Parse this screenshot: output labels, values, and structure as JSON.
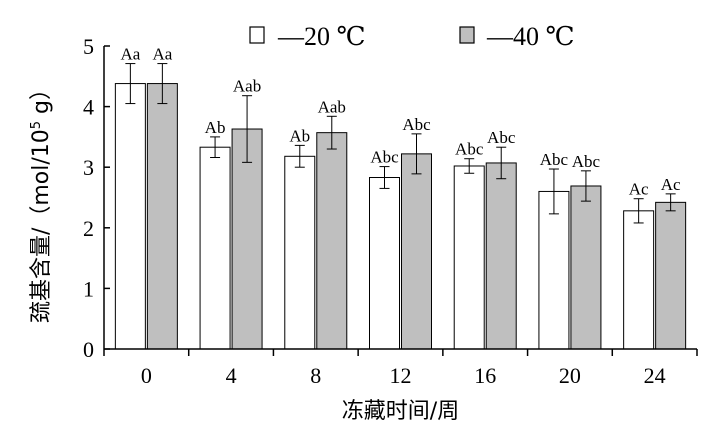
{
  "chart_data": {
    "type": "bar",
    "title": "",
    "xlabel": "冻藏时间/周",
    "ylabel": "巯基含量/（mol/10⁵ g）",
    "ylabel_parts": {
      "main": "巯基含量/（mol/10",
      "sup": "5",
      "tail": " g）"
    },
    "categories": [
      "0",
      "4",
      "8",
      "12",
      "16",
      "20",
      "24"
    ],
    "ylim": [
      0,
      5
    ],
    "yticks": [
      "0",
      "1",
      "2",
      "3",
      "4",
      "5"
    ],
    "grid": false,
    "legend_position": "top",
    "series": [
      {
        "name": "—20 ℃",
        "color": "#ffffff",
        "values": [
          4.38,
          3.33,
          3.18,
          2.83,
          3.02,
          2.6,
          2.28
        ],
        "errors": [
          0.33,
          0.17,
          0.18,
          0.18,
          0.12,
          0.37,
          0.2
        ],
        "labels": [
          "Aa",
          "Ab",
          "Ab",
          "Abc",
          "Abc",
          "Abc",
          "Ac"
        ]
      },
      {
        "name": "—40 ℃",
        "color": "#bfbfbf",
        "values": [
          4.38,
          3.63,
          3.57,
          3.22,
          3.07,
          2.69,
          2.42
        ],
        "errors": [
          0.33,
          0.55,
          0.27,
          0.33,
          0.26,
          0.25,
          0.14
        ],
        "labels": [
          "Aa",
          "Aab",
          "Aab",
          "Abc",
          "Abc",
          "Abc",
          "Ac"
        ]
      }
    ]
  }
}
